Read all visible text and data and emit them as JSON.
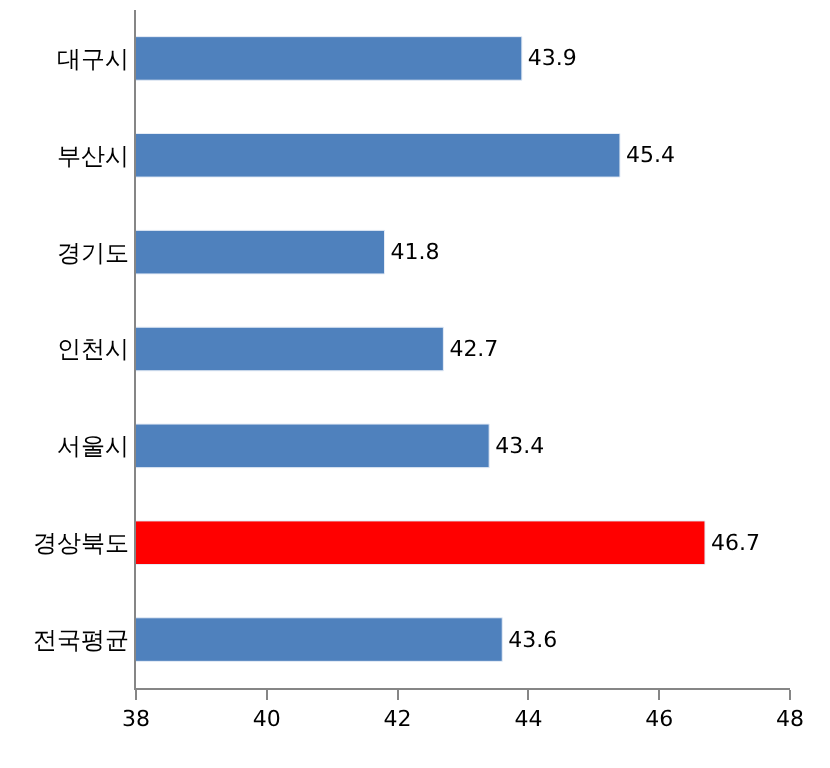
{
  "chart_data": {
    "type": "bar",
    "orientation": "horizontal",
    "categories": [
      "대구시",
      "부산시",
      "경기도",
      "인천시",
      "서울시",
      "경상북도",
      "전국평균"
    ],
    "values": [
      43.9,
      45.4,
      41.8,
      42.7,
      43.4,
      46.7,
      43.6
    ],
    "colors": [
      "#4f81bd",
      "#4f81bd",
      "#4f81bd",
      "#4f81bd",
      "#4f81bd",
      "#ff0000",
      "#4f81bd"
    ],
    "xlim": [
      38,
      48
    ],
    "xticks": [
      38,
      40,
      42,
      44,
      46,
      48
    ],
    "data_labels": true
  }
}
